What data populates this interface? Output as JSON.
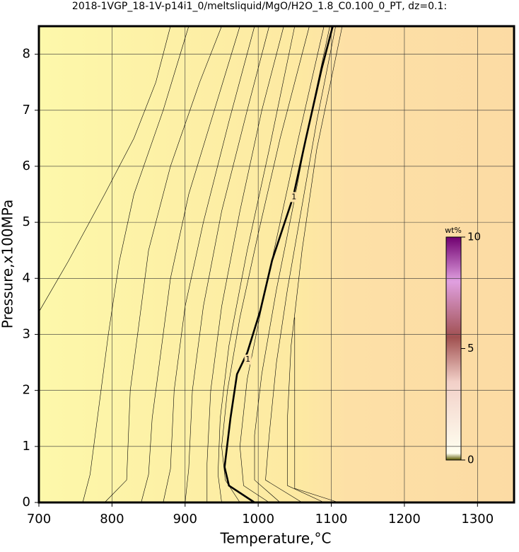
{
  "chart_data": {
    "type": "contour",
    "title": "2018-1VGP_18-1V-p14i1_0/meltsliquid/MgO/H2O_1.8_C0.100_0_PT, dz=0.1:",
    "x_label": "Temperature,°C",
    "y_label": "Pressure,x100MPa",
    "xlim": [
      700,
      1350
    ],
    "ylim": [
      0,
      8.5
    ],
    "xticks": [
      700,
      800,
      900,
      1000,
      1100,
      1200,
      1300
    ],
    "yticks": [
      0,
      1,
      2,
      3,
      4,
      5,
      6,
      7,
      8
    ],
    "grid": true,
    "contours": [
      {
        "x": [
          700,
          740,
          790,
          830,
          860,
          880
        ],
        "y": [
          3.4,
          4.3,
          5.5,
          6.5,
          7.5,
          8.5
        ]
      },
      {
        "x": [
          760,
          770,
          780,
          795,
          810,
          830,
          870,
          905
        ],
        "y": [
          0,
          0.5,
          1.5,
          3,
          4.3,
          5.5,
          7,
          8.5
        ]
      },
      {
        "x": [
          790,
          820,
          825,
          835,
          850,
          880,
          920,
          950
        ],
        "y": [
          0,
          0.4,
          2,
          3,
          4.5,
          6,
          7.5,
          8.5
        ]
      },
      {
        "x": [
          840,
          850,
          855,
          865,
          880,
          905,
          940,
          975
        ],
        "y": [
          0,
          0.5,
          1.5,
          2.5,
          4,
          5.5,
          7,
          8.5
        ]
      },
      {
        "x": [
          870,
          880,
          885,
          900,
          925,
          960,
          995
        ],
        "y": [
          0,
          0.6,
          2,
          3.5,
          5,
          6.8,
          8.5
        ]
      },
      {
        "x": [
          900,
          905,
          910,
          925,
          950,
          985,
          1015
        ],
        "y": [
          0,
          0.6,
          2,
          3.5,
          5.2,
          7,
          8.5
        ]
      },
      {
        "x": [
          930,
          930,
          935,
          950,
          975,
          1005,
          1035
        ],
        "y": [
          0,
          0.7,
          2,
          3.5,
          5.2,
          7,
          8.5
        ]
      },
      {
        "x": [
          950,
          945,
          948,
          960,
          985,
          1015,
          1050
        ],
        "y": [
          0,
          0.5,
          1.5,
          2.8,
          4.5,
          6.3,
          8.5
        ]
      },
      {
        "x": [
          975,
          955,
          950,
          958,
          975,
          1000,
          1030,
          1070
        ],
        "y": [
          0,
          0.4,
          1,
          2,
          3.3,
          4.8,
          6.5,
          8.5
        ]
      },
      {
        "x": [
          995,
          960,
          954,
          962,
          971,
          985,
          1003,
          1019,
          1048,
          1065,
          1087,
          1102
        ],
        "y": [
          0,
          0.3,
          0.63,
          1.5,
          2.29,
          2.67,
          3.43,
          4.32,
          5.46,
          6.48,
          7.75,
          8.5
        ],
        "bold": true
      },
      {
        "x": [
          1015,
          980,
          975,
          985,
          1005,
          1030,
          1055,
          1090
        ],
        "y": [
          0,
          0.3,
          1,
          2.2,
          3.5,
          5,
          6.5,
          8.5
        ]
      },
      {
        "x": [
          1030,
          995,
          995,
          1005,
          1025,
          1048,
          1070,
          1098
        ],
        "y": [
          0,
          0.4,
          1.2,
          2.3,
          3.8,
          5.3,
          6.8,
          8.5
        ]
      },
      {
        "x": [
          1060,
          1010,
          1015,
          1025,
          1040,
          1060,
          1080,
          1106
        ],
        "y": [
          0,
          0.4,
          1.2,
          2.5,
          3.8,
          5.3,
          6.8,
          8.5
        ]
      },
      {
        "x": [
          1090,
          1040,
          1040,
          1045,
          1060,
          1080,
          1115
        ],
        "y": [
          0,
          0.3,
          1.5,
          2.8,
          4.5,
          6.3,
          8.5
        ]
      },
      {
        "x": [
          1110,
          1050,
          1050
        ],
        "y": [
          0,
          0.25,
          3.3
        ]
      }
    ],
    "contour_labels": [
      {
        "text": "1",
        "x": 1049,
        "y": 5.45
      },
      {
        "text": "1",
        "x": 986,
        "y": 2.55
      }
    ],
    "colorbar": {
      "label": "wt%",
      "lim": [
        0,
        10
      ],
      "ticks": [
        0,
        5,
        10
      ]
    }
  }
}
